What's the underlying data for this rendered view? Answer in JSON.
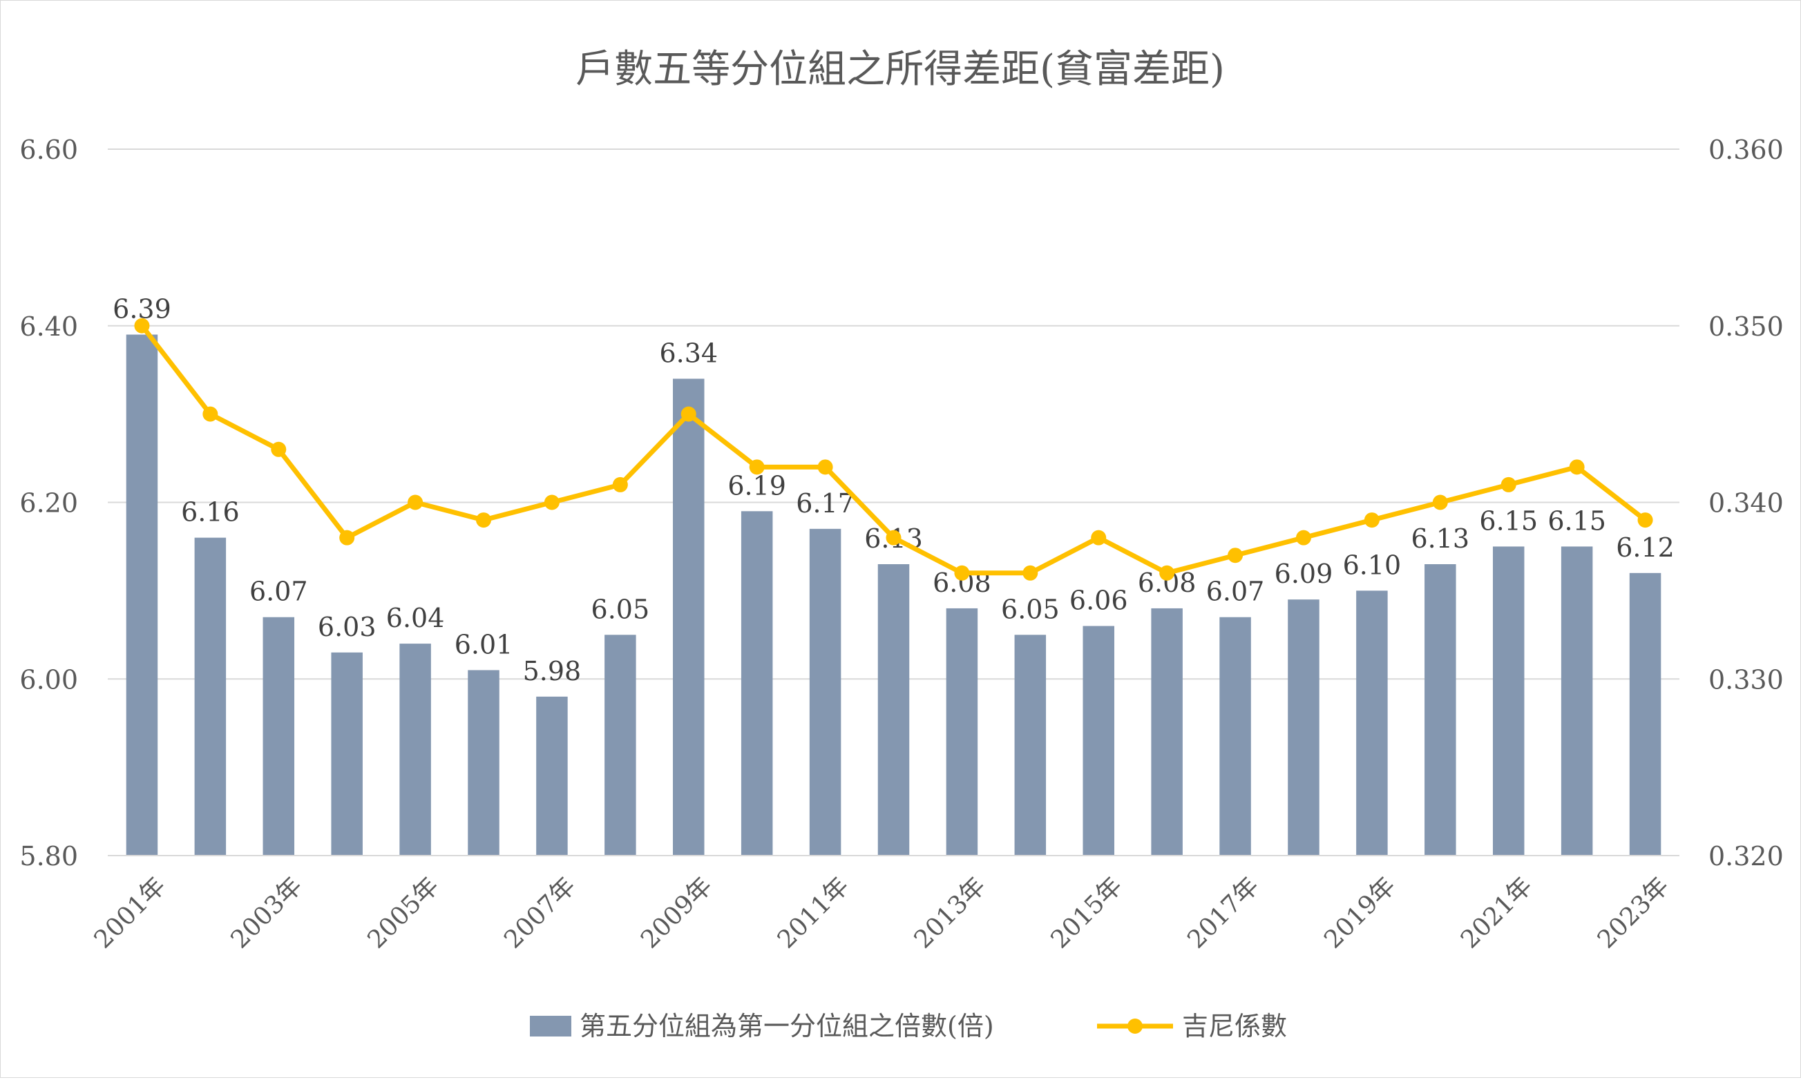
{
  "chart_data": {
    "type": "bar",
    "title": "戶數五等分位組之所得差距(貧富差距)",
    "x_tick_labels": [
      "2001年",
      "2003年",
      "2005年",
      "2007年",
      "2009年",
      "2011年",
      "2013年",
      "2015年",
      "2017年",
      "2019年",
      "2021年",
      "2023年"
    ],
    "categories": [
      "2001年",
      "2002年",
      "2003年",
      "2004年",
      "2005年",
      "2006年",
      "2007年",
      "2008年",
      "2009年",
      "2010年",
      "2011年",
      "2012年",
      "2013年",
      "2014年",
      "2015年",
      "2016年",
      "2017年",
      "2018年",
      "2019年",
      "2020年",
      "2021年",
      "2022年",
      "2023年"
    ],
    "series": [
      {
        "name": "第五分位組為第一分位組之倍數(倍)",
        "type": "bar",
        "axis": "left",
        "color": "#8497b0",
        "values": [
          6.39,
          6.16,
          6.07,
          6.03,
          6.04,
          6.01,
          5.98,
          6.05,
          6.34,
          6.19,
          6.17,
          6.13,
          6.08,
          6.05,
          6.06,
          6.08,
          6.07,
          6.09,
          6.1,
          6.13,
          6.15,
          6.15,
          6.12
        ],
        "data_labels": [
          "6.39",
          "6.16",
          "6.07",
          "6.03",
          "6.04",
          "6.01",
          "5.98",
          "6.05",
          "6.34",
          "6.19",
          "6.17",
          "6.13",
          "6.08",
          "6.05",
          "6.06",
          "6.08",
          "6.07",
          "6.09",
          "6.10",
          "6.13",
          "6.15",
          "6.15",
          "6.12"
        ]
      },
      {
        "name": "吉尼係數",
        "type": "line",
        "axis": "right",
        "color": "#ffc000",
        "values": [
          0.35,
          0.345,
          0.343,
          0.338,
          0.34,
          0.339,
          0.34,
          0.341,
          0.345,
          0.342,
          0.342,
          0.338,
          0.336,
          0.336,
          0.338,
          0.336,
          0.337,
          0.338,
          0.339,
          0.34,
          0.341,
          0.342,
          0.339
        ]
      }
    ],
    "y_left": {
      "ylim": [
        5.8,
        6.6
      ],
      "ticks": [
        "5.80",
        "6.00",
        "6.20",
        "6.40",
        "6.60"
      ]
    },
    "y_right": {
      "ylim": [
        0.32,
        0.36
      ],
      "ticks": [
        "0.320",
        "0.330",
        "0.340",
        "0.350",
        "0.360"
      ]
    },
    "grid": true,
    "legend_position": "bottom",
    "colors": {
      "gridline": "#d9d9d9",
      "text": "#595959",
      "title": "#595959"
    }
  }
}
